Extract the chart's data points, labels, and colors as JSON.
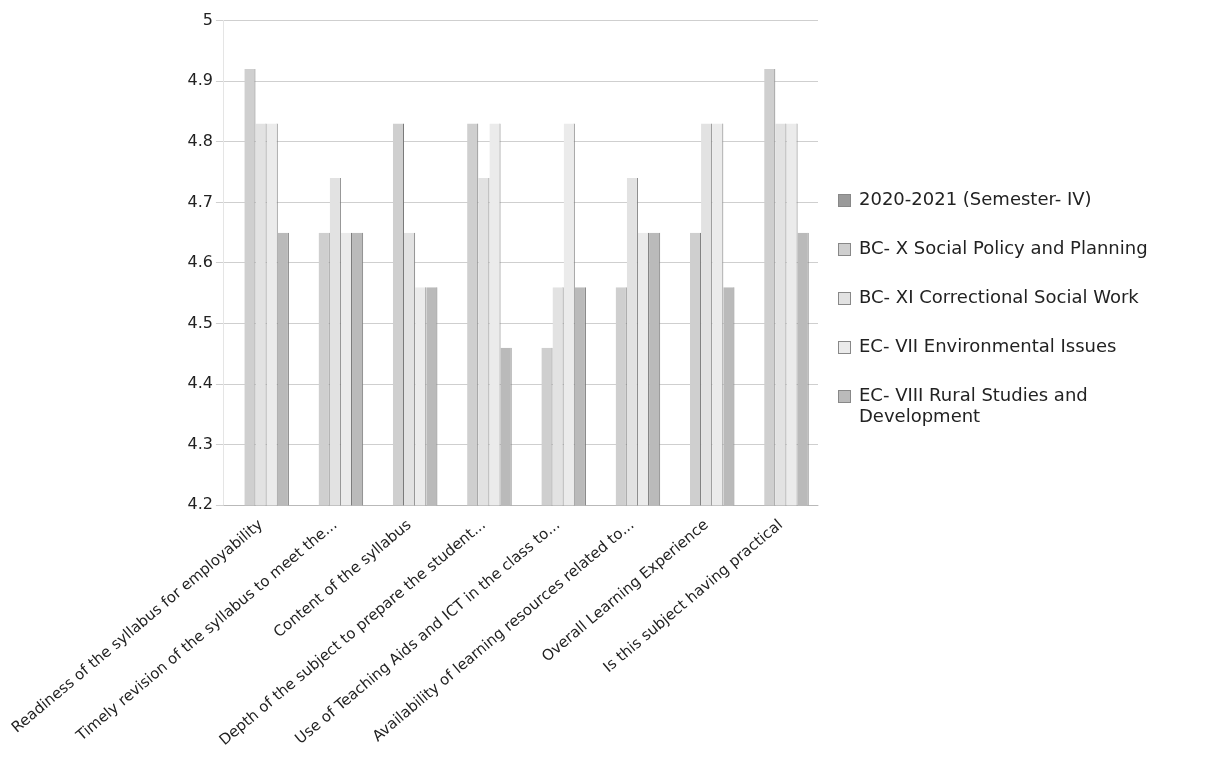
{
  "chart_data": {
    "type": "bar",
    "categories": [
      "Readiness of the syllabus for employability",
      "Timely revision of the syllabus to meet the...",
      "Content of the syllabus",
      "Depth of the subject to prepare the student...",
      "Use of Teaching Aids and ICT in the class to...",
      "Availability of learning resources related to...",
      "Overall Learning Experience",
      "Is this subject having practical"
    ],
    "series": [
      {
        "name": "2020-2021 (Semester- IV)",
        "color": "#9a9a9a",
        "values": [
          null,
          null,
          null,
          null,
          null,
          null,
          null,
          null
        ]
      },
      {
        "name": "BC- X Social Policy and Planning",
        "color": "#cfcfcf",
        "values": [
          4.92,
          4.65,
          4.83,
          4.83,
          4.46,
          4.56,
          4.65,
          4.92
        ]
      },
      {
        "name": "BC- XI Correctional Social Work",
        "color": "#e2e2e2",
        "values": [
          4.83,
          4.74,
          4.65,
          4.74,
          4.56,
          4.74,
          4.83,
          4.83
        ]
      },
      {
        "name": "EC- VII Environmental Issues",
        "color": "#ebebeb",
        "values": [
          4.83,
          4.65,
          4.56,
          4.83,
          4.83,
          4.65,
          4.83,
          4.83
        ]
      },
      {
        "name": "EC- VIII Rural Studies and Development",
        "color": "#bababa",
        "values": [
          4.65,
          4.65,
          4.56,
          4.46,
          4.56,
          4.65,
          4.56,
          4.65
        ]
      }
    ],
    "ylim": [
      4.2,
      5
    ],
    "yticks": [
      4.2,
      4.3,
      4.4,
      4.5,
      4.6,
      4.7,
      4.8,
      4.9,
      5
    ],
    "grid": "y",
    "legend": "right"
  }
}
